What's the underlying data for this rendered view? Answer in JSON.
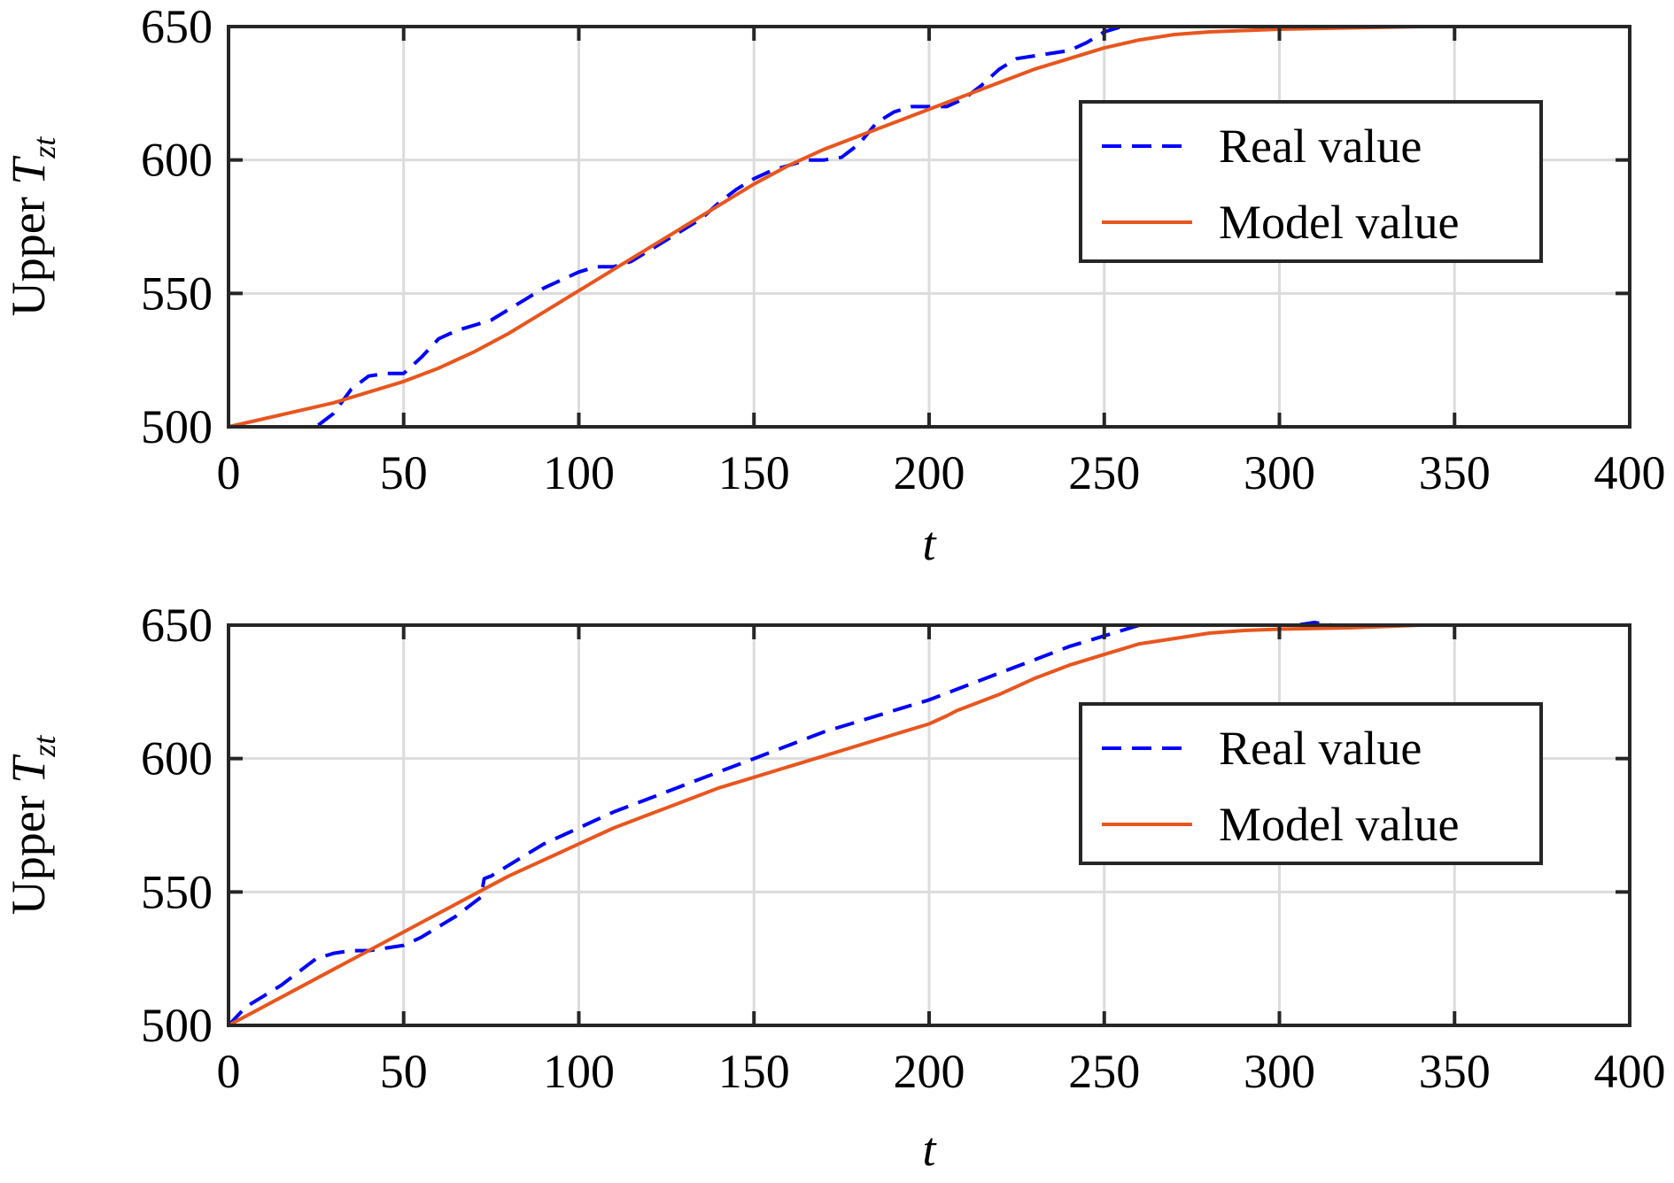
{
  "chart_data": [
    {
      "type": "line",
      "xlabel": "t",
      "ylabel_prefix": "Upper ",
      "ylabel_var": "T",
      "ylabel_sub": "zt",
      "xlim": [
        0,
        400
      ],
      "ylim": [
        500,
        650
      ],
      "xticks": [
        0,
        50,
        100,
        150,
        200,
        250,
        300,
        350,
        400
      ],
      "yticks": [
        500,
        550,
        600,
        650
      ],
      "grid": true,
      "legend_position": "upper-right",
      "series": [
        {
          "name": "Real value",
          "color": "#0000ff",
          "style": "dashed",
          "x": [
            0,
            5,
            10,
            15,
            20,
            25,
            30,
            35,
            40,
            45,
            50,
            55,
            60,
            65,
            70,
            75,
            80,
            85,
            90,
            95,
            100,
            105,
            110,
            115,
            120,
            125,
            130,
            135,
            140,
            145,
            150,
            155,
            160,
            165,
            170,
            175,
            180,
            185,
            190,
            195,
            200,
            205,
            210,
            215,
            220,
            225,
            230,
            235,
            240,
            245,
            250,
            255,
            260,
            265,
            270,
            280,
            290,
            300,
            320,
            350,
            400
          ],
          "y": [
            500,
            500,
            500,
            500,
            500,
            500,
            505,
            514,
            519,
            520,
            520,
            526,
            533,
            536,
            538,
            540,
            544,
            548,
            552,
            555,
            558,
            560,
            560,
            562,
            566,
            570,
            574,
            578,
            584,
            589,
            593,
            596,
            598,
            600,
            600,
            601,
            606,
            614,
            618,
            620,
            620,
            620,
            623,
            628,
            634,
            638,
            639,
            640,
            641,
            644,
            648,
            650,
            650,
            650,
            650,
            650,
            650,
            650,
            650,
            650,
            650
          ]
        },
        {
          "name": "Model value",
          "color": "#e8561e",
          "style": "solid",
          "x": [
            0,
            10,
            20,
            30,
            40,
            50,
            60,
            70,
            80,
            90,
            100,
            110,
            120,
            130,
            140,
            150,
            160,
            170,
            180,
            190,
            200,
            210,
            220,
            230,
            240,
            250,
            260,
            270,
            280,
            290,
            300,
            320,
            340,
            360,
            380,
            400
          ],
          "y": [
            500,
            503,
            506,
            509,
            513,
            517,
            522,
            528,
            535,
            543,
            551,
            559,
            567,
            575,
            583,
            591,
            598,
            604,
            609,
            614,
            619,
            624,
            629,
            634,
            638,
            642,
            645,
            647,
            648,
            648.5,
            649,
            649.5,
            650,
            650,
            650,
            650
          ]
        }
      ]
    },
    {
      "type": "line",
      "xlabel": "t",
      "ylabel_prefix": "Upper ",
      "ylabel_var": "T",
      "ylabel_sub": "zt",
      "xlim": [
        0,
        400
      ],
      "ylim": [
        500,
        650
      ],
      "xticks": [
        0,
        50,
        100,
        150,
        200,
        250,
        300,
        350,
        400
      ],
      "yticks": [
        500,
        550,
        600,
        650
      ],
      "grid": true,
      "legend_position": "upper-right",
      "series": [
        {
          "name": "Real value",
          "color": "#0000ff",
          "style": "dashed",
          "x": [
            0,
            5,
            10,
            15,
            20,
            25,
            30,
            35,
            40,
            45,
            50,
            55,
            60,
            65,
            70,
            72,
            73,
            75,
            80,
            85,
            90,
            95,
            100,
            110,
            120,
            130,
            140,
            150,
            160,
            170,
            180,
            190,
            200,
            210,
            220,
            230,
            240,
            250,
            260,
            270,
            280,
            290,
            300,
            305,
            310,
            315,
            320,
            350,
            400
          ],
          "y": [
            500,
            507,
            511,
            515,
            520,
            525,
            527,
            528,
            528,
            529,
            530,
            533,
            537,
            541,
            546,
            548,
            555,
            556,
            560,
            564,
            568,
            571,
            574,
            580,
            585,
            590,
            595,
            600,
            605,
            610,
            614,
            618,
            622,
            627,
            632,
            637,
            642,
            646,
            650,
            650,
            650,
            650,
            650,
            650,
            651,
            650,
            650,
            650,
            650
          ]
        },
        {
          "name": "Model value",
          "color": "#e8561e",
          "style": "solid",
          "x": [
            0,
            10,
            20,
            30,
            40,
            50,
            60,
            70,
            80,
            90,
            100,
            110,
            120,
            130,
            140,
            150,
            160,
            170,
            180,
            190,
            200,
            205,
            208,
            210,
            220,
            230,
            240,
            250,
            260,
            270,
            280,
            290,
            300,
            320,
            340,
            360,
            380,
            400
          ],
          "y": [
            500,
            507,
            514,
            521,
            528,
            535,
            542,
            549,
            556,
            562,
            568,
            574,
            579,
            584,
            589,
            593,
            597,
            601,
            605,
            609,
            613,
            616,
            618,
            619,
            624,
            630,
            635,
            639,
            643,
            645,
            647,
            648,
            648.5,
            649,
            650,
            650,
            650,
            650
          ]
        }
      ]
    }
  ]
}
